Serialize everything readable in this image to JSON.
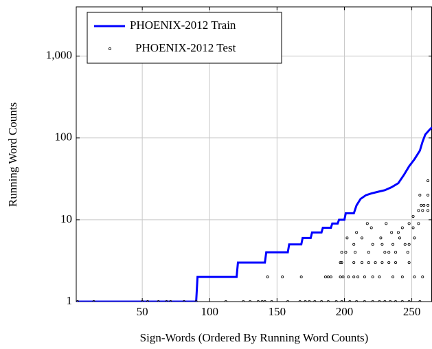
{
  "chart_data": {
    "type": "line-scatter",
    "x_label": "Sign-Words (Ordered By Running Word Counts)",
    "y_label": "Running Word Counts",
    "xlim": [
      1,
      265
    ],
    "xticks": [
      50,
      100,
      150,
      200,
      250
    ],
    "ylim": [
      1,
      4000
    ],
    "yticks": [
      1,
      10,
      100,
      {
        "value": 1000,
        "label": "1,000"
      }
    ],
    "log_y": true,
    "grid": true,
    "legend": "upper left",
    "series": [
      {
        "name": "PHOENIX-2012 Train",
        "type": "line",
        "color": "#0000ff",
        "x": [
          1,
          90,
          91,
          120,
          121,
          141,
          142,
          158,
          159,
          168,
          169,
          175,
          176,
          183,
          184,
          190,
          191,
          195,
          196,
          200,
          201,
          207,
          209,
          212,
          216,
          220,
          225,
          230,
          235,
          240,
          244,
          248,
          252,
          256,
          258,
          260,
          263,
          265
        ],
        "values": [
          1,
          1,
          2,
          2,
          3,
          3,
          4,
          4,
          5,
          5,
          6,
          6,
          7,
          7,
          8,
          8,
          9,
          9,
          10,
          10,
          12,
          12,
          15,
          18,
          20,
          21,
          22,
          23,
          25,
          28,
          35,
          45,
          55,
          70,
          90,
          110,
          125,
          135
        ]
      },
      {
        "name": "PHOENIX-2012 Test",
        "type": "scatter",
        "color": "#000000",
        "x": [
          2,
          14,
          50,
          54,
          62,
          68,
          71,
          81,
          90,
          112,
          125,
          130,
          136,
          139,
          141,
          146,
          158,
          167,
          171,
          174,
          178,
          183,
          188,
          194,
          198,
          204,
          209,
          215,
          221,
          226,
          230,
          234,
          238,
          243,
          248,
          256,
          143,
          154,
          168,
          186,
          188,
          190,
          197,
          199,
          203,
          207,
          210,
          215,
          221,
          226,
          236,
          243,
          252,
          258,
          197,
          198,
          207,
          213,
          218,
          223,
          228,
          233,
          238,
          248,
          198,
          201,
          208,
          218,
          230,
          233,
          238,
          247,
          207,
          221,
          228,
          236,
          245,
          248,
          202,
          213,
          227,
          241,
          252,
          209,
          235,
          240,
          220,
          243,
          251,
          217,
          231,
          248,
          255,
          251,
          255,
          258,
          262,
          257,
          259,
          262,
          256,
          262,
          262
        ],
        "values": [
          1,
          1,
          1,
          1,
          1,
          1,
          1,
          1,
          1,
          1,
          1,
          1,
          1,
          1,
          1,
          1,
          1,
          1,
          1,
          1,
          1,
          1,
          1,
          1,
          1,
          1,
          1,
          1,
          1,
          1,
          1,
          1,
          1,
          1,
          1,
          1,
          2,
          2,
          2,
          2,
          2,
          2,
          2,
          2,
          2,
          2,
          2,
          2,
          2,
          2,
          2,
          2,
          2,
          2,
          3,
          3,
          3,
          3,
          3,
          3,
          3,
          3,
          3,
          3,
          4,
          4,
          4,
          4,
          4,
          4,
          4,
          4,
          5,
          5,
          5,
          5,
          5,
          5,
          6,
          6,
          6,
          6,
          6,
          7,
          7,
          7,
          8,
          8,
          8,
          9,
          9,
          9,
          9,
          11,
          13,
          13,
          13,
          15,
          15,
          15,
          20,
          20,
          30
        ]
      }
    ]
  }
}
